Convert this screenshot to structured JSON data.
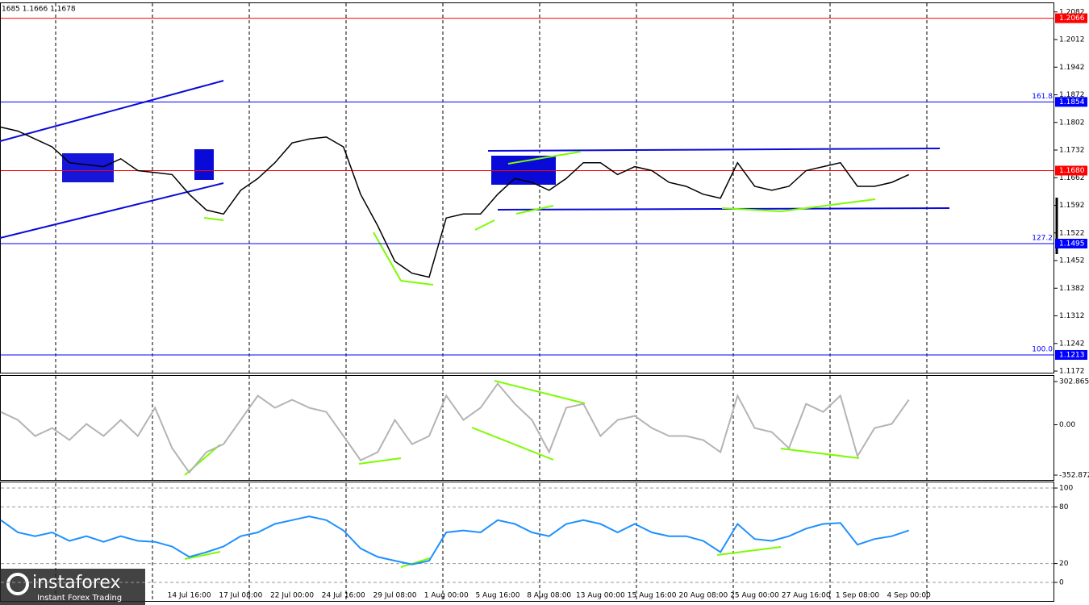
{
  "header": "1685 1.1666 1.1678",
  "branding": {
    "name": "instaforex",
    "tagline": "Instant Forex Trading"
  },
  "chart_data": [
    {
      "type": "line",
      "color": "#000000",
      "categories": [
        null,
        null,
        null,
        null,
        null,
        null,
        null,
        null,
        null,
        null,
        null,
        "14 Jul 16:00",
        null,
        null,
        "17 Jul 08:00",
        null,
        null,
        "22 Jul 00:00",
        null,
        null,
        "24 Jul 16:00",
        null,
        null,
        "29 Jul 08:00",
        null,
        null,
        "1 Aug 00:00",
        null,
        null,
        "5 Aug 16:00",
        null,
        null,
        "8 Aug 08:00",
        null,
        null,
        "13 Aug 00:00",
        null,
        null,
        "15 Aug 16:00",
        null,
        null,
        "20 Aug 08:00",
        null,
        null,
        "25 Aug 00:00",
        null,
        null,
        "27 Aug 16:00",
        null,
        null,
        "1 Sep 08:00",
        null,
        null,
        "4 Sep 00:00"
      ],
      "values": [
        1.179,
        1.178,
        1.176,
        1.174,
        1.17,
        1.1695,
        1.169,
        1.171,
        1.168,
        1.1675,
        1.167,
        1.162,
        1.158,
        1.157,
        1.163,
        1.166,
        1.17,
        1.175,
        1.176,
        1.1765,
        1.174,
        1.162,
        1.154,
        1.145,
        1.142,
        1.141,
        1.156,
        1.157,
        1.157,
        1.162,
        1.166,
        1.165,
        1.163,
        1.166,
        1.17,
        1.17,
        1.167,
        1.169,
        1.168,
        1.165,
        1.164,
        1.162,
        1.161,
        1.17,
        1.164,
        1.163,
        1.164,
        1.168,
        1.169,
        1.17,
        1.164,
        1.164,
        1.165,
        1.167
      ],
      "ylim": [
        1.1168,
        1.2104
      ],
      "yticks": [
        1.2082,
        1.2012,
        1.1942,
        1.1872,
        1.1802,
        1.1732,
        1.1662,
        1.1592,
        1.1522,
        1.1452,
        1.1382,
        1.1312,
        1.1242,
        1.1172
      ],
      "levels": [
        {
          "value": 1.2066,
          "label": "1.2066",
          "color": "#ff0000"
        },
        {
          "value": 1.1854,
          "label": "1.1854",
          "color": "#0000ff",
          "fib": "161.8"
        },
        {
          "value": 1.168,
          "label": "1.1680",
          "color": "#ff0000"
        },
        {
          "value": 1.1495,
          "label": "1.1495",
          "color": "#0000ff",
          "fib": "127.2"
        },
        {
          "value": 1.1213,
          "label": "1.1213",
          "color": "#0000ff",
          "fib": "100.0"
        }
      ]
    },
    {
      "type": "line",
      "color": "#b4b4b4",
      "values": [
        90,
        34,
        -79,
        -23,
        -107,
        6,
        -79,
        34,
        -79,
        119,
        -164,
        -334,
        -192,
        -136,
        34,
        204,
        119,
        175,
        119,
        90,
        -79,
        -249,
        -192,
        34,
        -136,
        -79,
        204,
        34,
        119,
        288,
        147,
        34,
        -192,
        119,
        147,
        -79,
        34,
        62,
        -23,
        -79,
        -79,
        -107,
        -192,
        204,
        -23,
        -51,
        -164,
        147,
        90,
        204,
        -220,
        -23,
        6,
        175
      ],
      "ylim": [
        -386.8,
        342.4
      ],
      "yticks": [
        302.8654,
        {
          "value": 0,
          "label": "0.00"
        },
        -352.872
      ],
      "grid": false
    },
    {
      "type": "line",
      "color": "#1e90ff",
      "values": [
        66,
        53,
        49,
        53,
        44,
        49,
        43,
        49,
        44,
        43,
        38,
        27,
        32,
        38,
        49,
        53,
        62,
        66,
        70,
        66,
        55,
        36,
        27,
        23,
        19,
        23,
        53,
        55,
        53,
        66,
        62,
        53,
        49,
        62,
        66,
        62,
        53,
        62,
        53,
        49,
        49,
        44,
        32,
        62,
        46,
        44,
        49,
        57,
        62,
        63,
        40,
        46,
        49,
        55
      ],
      "ylim": [
        -19.7,
        106
      ],
      "yticks": [
        100,
        80,
        20,
        0
      ],
      "grid": true
    }
  ]
}
